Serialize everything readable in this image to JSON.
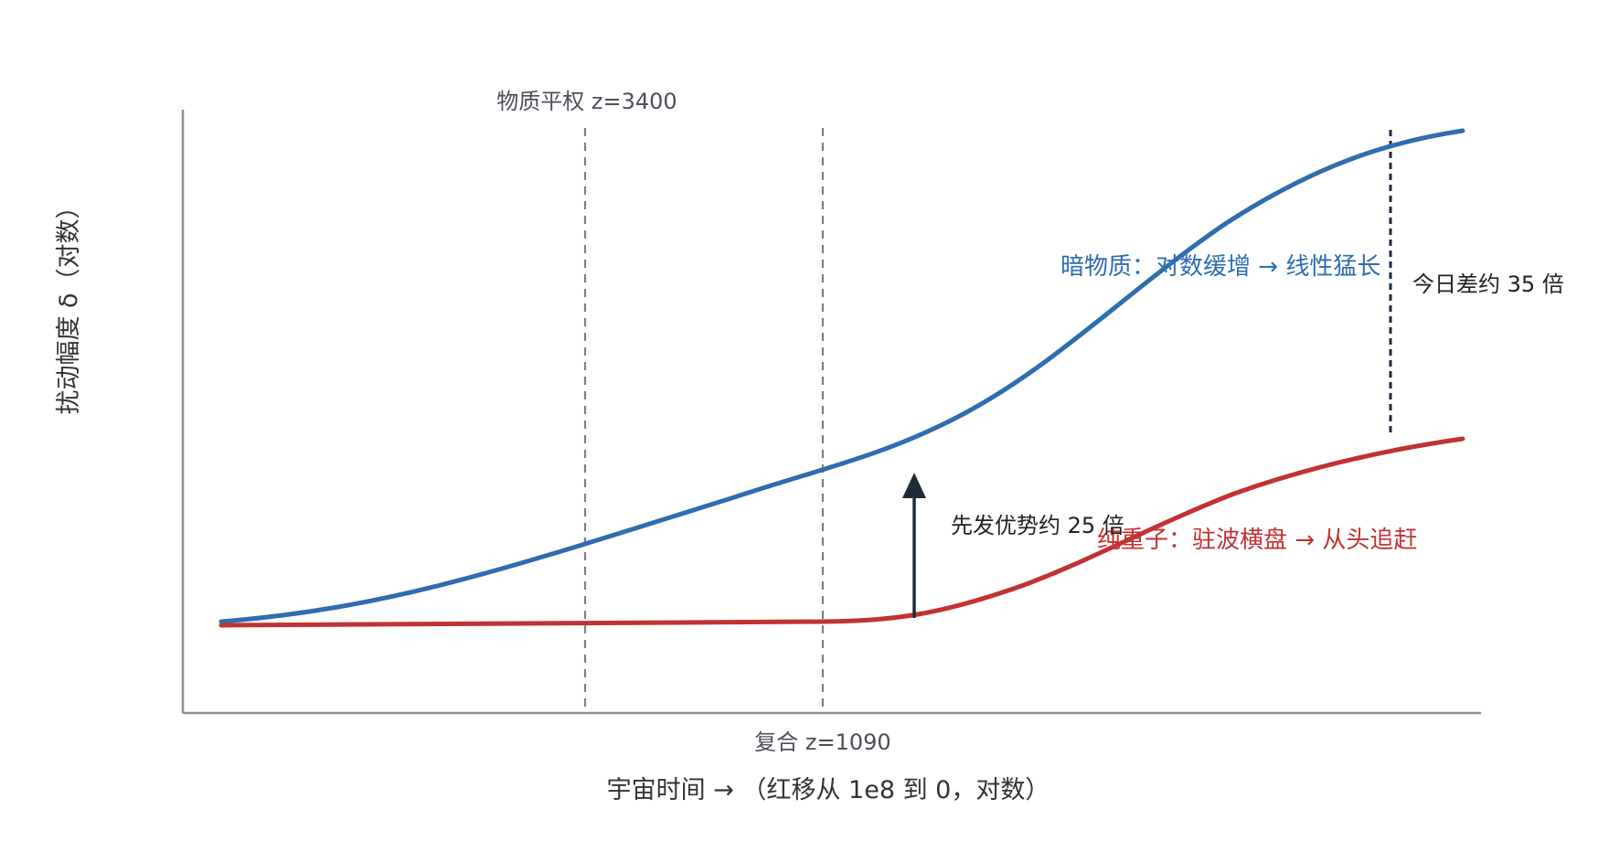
{
  "chart_data": {
    "type": "line",
    "title": "",
    "xlabel": "宇宙时间 → （红移从 1e8 到 0，对数）",
    "ylabel": "扰动幅度 δ（对数）",
    "x_scale": "log-redshift",
    "y_scale": "log",
    "xlim": [
      100000000,
      0
    ],
    "grid": false,
    "legend": "none",
    "series": [
      {
        "name": "暗物质：对数缓增 → 线性猛长",
        "color": "#2f6db0",
        "points": [
          {
            "x": 100000000,
            "y": 1.0
          },
          {
            "x": 3400,
            "y": 2.3
          },
          {
            "x": 1090,
            "y": 4.6
          },
          {
            "x": 0,
            "y": 82
          }
        ]
      },
      {
        "name": "纯重子：驻波横盘 → 从头追赶",
        "color": "#c23232",
        "points": [
          {
            "x": 100000000,
            "y": 0.97
          },
          {
            "x": 3400,
            "y": 0.99
          },
          {
            "x": 1090,
            "y": 1.0
          },
          {
            "x": 0,
            "y": 2.35
          }
        ]
      }
    ],
    "reference_lines": [
      {
        "label": "物质平权 z=3400",
        "z": 3400
      },
      {
        "label": "复合 z=1090",
        "z": 1090
      }
    ],
    "annotations": {
      "head_start": "先发优势约 25 倍",
      "today_gap": "今日差约 35 倍"
    }
  },
  "colors": {
    "axis": "#8a8f98",
    "guide": "#7a7f88",
    "arrow": "#1f2a3a",
    "text": "#333333"
  }
}
